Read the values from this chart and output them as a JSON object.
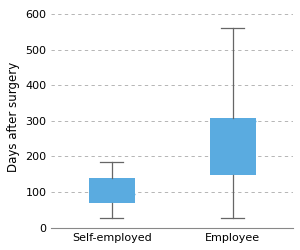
{
  "categories": [
    "Self-employed",
    "Employee"
  ],
  "boxes": [
    {
      "whislo": 28,
      "q1": 68,
      "med": 93,
      "q3": 140,
      "whishi": 185
    },
    {
      "whislo": 28,
      "q1": 148,
      "med": 298,
      "q3": 308,
      "whishi": 560
    }
  ],
  "box_color": "#5aabe0",
  "box_edge_color": "#5aabe0",
  "whisker_color": "#666666",
  "median_color": "#5aabe0",
  "cap_color": "#666666",
  "ylabel": "Days after surgery",
  "ylim": [
    0,
    620
  ],
  "yticks": [
    0,
    100,
    200,
    300,
    400,
    500,
    600
  ],
  "grid_color": "#aaaaaa",
  "background_color": "#ffffff",
  "fig_background": "#ffffff",
  "label_fontsize": 8.5,
  "tick_fontsize": 8,
  "box_width": 0.38
}
